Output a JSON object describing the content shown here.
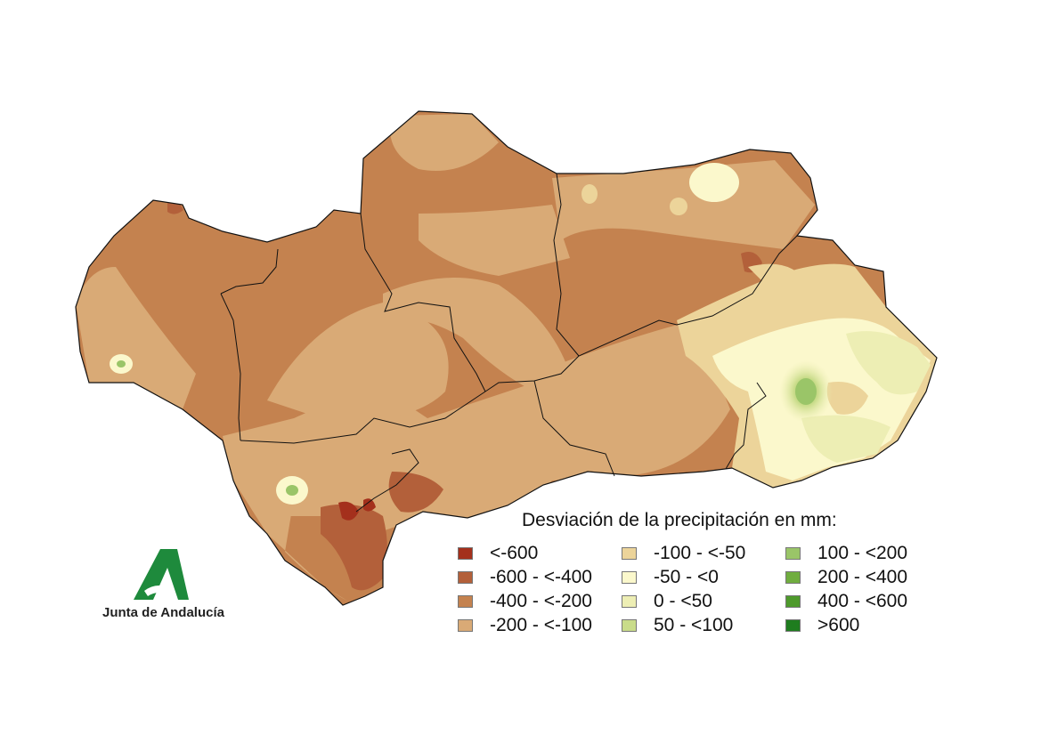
{
  "legend": {
    "title": "Desviación de la precipitación en mm:",
    "items": [
      {
        "label": "<-600",
        "color": "#a4301c"
      },
      {
        "label": "-600 - <-400",
        "color": "#b3603a"
      },
      {
        "label": "-400 - <-200",
        "color": "#c4824f"
      },
      {
        "label": "-200 - <-100",
        "color": "#d9aa76"
      },
      {
        "label": "-100 - <-50",
        "color": "#ecd49a"
      },
      {
        "label": "-50 - <0",
        "color": "#fbf8cc"
      },
      {
        "label": "0 - <50",
        "color": "#edeeb4"
      },
      {
        "label": "50 - <100",
        "color": "#c9dc8a"
      },
      {
        "label": "100 - <200",
        "color": "#9ac568"
      },
      {
        "label": "200 - <400",
        "color": "#70ad3f"
      },
      {
        "label": "400 - <600",
        "color": "#4e9a2c"
      },
      {
        "label": ">600",
        "color": "#1f7d1f"
      }
    ]
  },
  "logo": {
    "text": "Junta de Andalucía",
    "icon": "junta-andalucia-logo-icon",
    "color": "#1e8a3c"
  }
}
